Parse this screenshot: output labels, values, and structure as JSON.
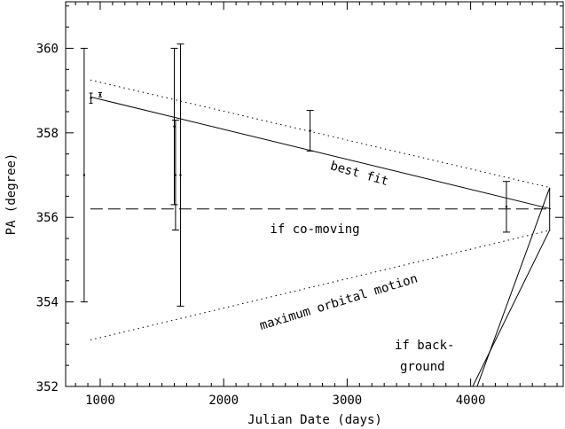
{
  "chart_data": {
    "type": "scatter",
    "xlabel": "Julian Date (days)",
    "ylabel": "PA (degree)",
    "xlim": [
      720,
      4750
    ],
    "ylim": [
      352,
      361.1
    ],
    "xticks": [
      1000,
      2000,
      3000,
      4000
    ],
    "yticks": [
      352,
      354,
      356,
      358,
      360
    ],
    "points": [
      {
        "x": 870,
        "y": 357.0,
        "err": 3.0
      },
      {
        "x": 925,
        "y": 358.82,
        "err": 0.12
      },
      {
        "x": 1000,
        "y": 358.9,
        "err": 0.05
      },
      {
        "x": 1600,
        "y": 358.15,
        "err": 1.85
      },
      {
        "x": 1610,
        "y": 357.0,
        "err": 1.3
      },
      {
        "x": 1650,
        "y": 357.0,
        "err": 3.1
      },
      {
        "x": 2700,
        "y": 358.05,
        "err": 0.48
      },
      {
        "x": 4290,
        "y": 356.25,
        "err": 0.6
      }
    ],
    "lines": [
      {
        "label": "best fit",
        "style": "solid",
        "x": [
          920,
          4650
        ],
        "y": [
          358.85,
          356.2
        ]
      },
      {
        "label": "if co-moving",
        "style": "dashed",
        "x": [
          920,
          4650
        ],
        "y": [
          356.2,
          356.2
        ]
      },
      {
        "label": "",
        "style": "dotted",
        "x": [
          920,
          4650
        ],
        "y": [
          359.25,
          356.7
        ]
      },
      {
        "label": "maximum orbital motion",
        "style": "dotted",
        "x": [
          920,
          4650
        ],
        "y": [
          353.1,
          355.7
        ]
      },
      {
        "label": "if back-ground",
        "style": "solid",
        "x": [
          4640,
          4040
        ],
        "y": [
          356.7,
          351.9
        ]
      },
      {
        "label": "",
        "style": "solid",
        "x": [
          4640,
          4000
        ],
        "y": [
          355.7,
          351.9
        ]
      },
      {
        "label": "",
        "style": "solid",
        "x": [
          4640,
          4640
        ],
        "y": [
          356.7,
          355.7
        ]
      }
    ]
  },
  "annotations": {
    "best_fit": "best fit",
    "co_moving": "if co-moving",
    "orbital": "maximum orbital motion",
    "background_1": "if back-",
    "background_2": "ground"
  }
}
